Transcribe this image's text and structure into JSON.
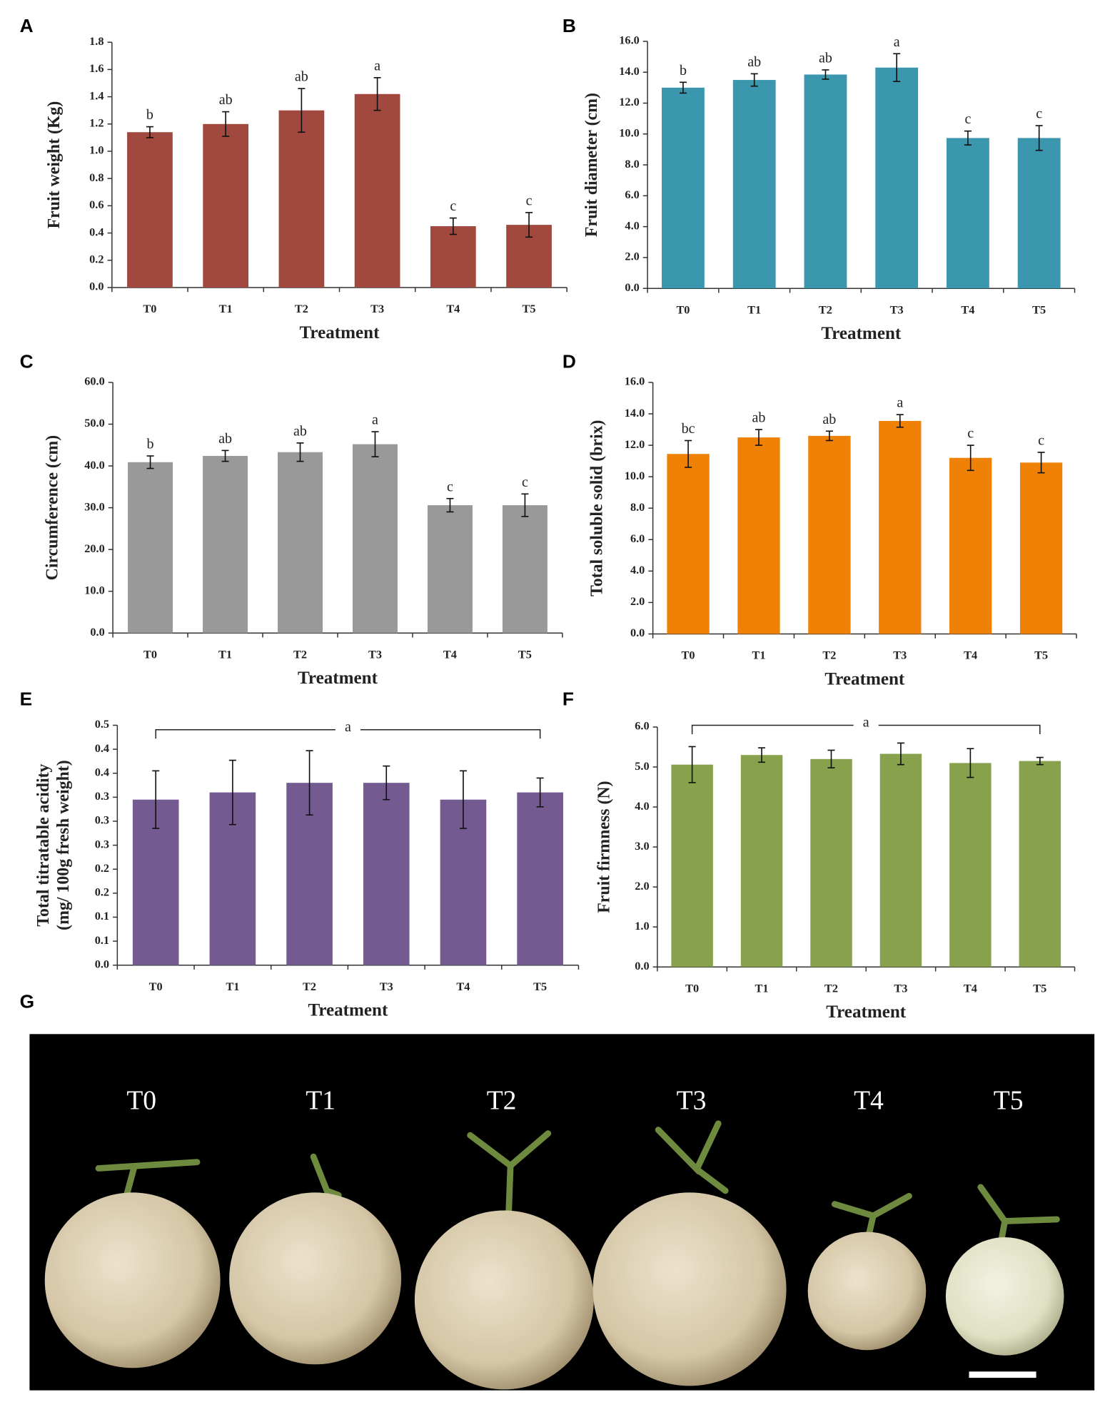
{
  "chart_data": [
    {
      "type": "bar",
      "panel": "A",
      "xlabel": "Treatment",
      "ylabel": "Fruit weight (Kg)",
      "color": "#a2493f",
      "categories": [
        "T0",
        "T1",
        "T2",
        "T3",
        "T4",
        "T5"
      ],
      "values": [
        1.14,
        1.2,
        1.3,
        1.42,
        0.45,
        0.46
      ],
      "errors": [
        0.04,
        0.09,
        0.16,
        0.12,
        0.06,
        0.09
      ],
      "annotations": [
        "b",
        "ab",
        "ab",
        "a",
        "c",
        "c"
      ],
      "ylim": [
        0,
        1.8
      ],
      "yticks": [
        {
          "value": 0,
          "label": "0.0"
        },
        0.2,
        0.4,
        0.6,
        0.8,
        {
          "value": 1,
          "label": "1.0"
        },
        1.2,
        1.4,
        1.6,
        1.8
      ]
    },
    {
      "type": "bar",
      "panel": "B",
      "xlabel": "Treatment",
      "ylabel": "Fruit diameter (cm)",
      "color": "#3b97ae",
      "categories": [
        "T0",
        "T1",
        "T2",
        "T3",
        "T4",
        "T5"
      ],
      "values": [
        13.0,
        13.5,
        13.85,
        14.3,
        9.74,
        9.74
      ],
      "errors": [
        0.35,
        0.4,
        0.3,
        0.9,
        0.45,
        0.8
      ],
      "annotations": [
        "b",
        "ab",
        "ab",
        "a",
        "c",
        "c"
      ],
      "ylim": [
        0,
        16
      ],
      "yticks": [
        {
          "value": 0,
          "label": "0.0"
        },
        {
          "value": 2,
          "label": "2.0"
        },
        {
          "value": 4,
          "label": "4.0"
        },
        {
          "value": 6,
          "label": "6.0"
        },
        {
          "value": 8,
          "label": "8.0"
        },
        {
          "value": 10,
          "label": "10.0"
        },
        {
          "value": 12,
          "label": "12.0"
        },
        {
          "value": 14,
          "label": "14.0"
        },
        {
          "value": 16,
          "label": "16.0"
        }
      ]
    },
    {
      "type": "bar",
      "panel": "C",
      "xlabel": "Treatment",
      "ylabel": "Circumference (cm)",
      "color": "#999999",
      "categories": [
        "T0",
        "T1",
        "T2",
        "T3",
        "T4",
        "T5"
      ],
      "values": [
        40.9,
        42.4,
        43.3,
        45.2,
        30.6,
        30.6
      ],
      "errors": [
        1.5,
        1.3,
        2.2,
        3.0,
        1.6,
        2.7
      ],
      "annotations": [
        "b",
        "ab",
        "ab",
        "a",
        "c",
        "c"
      ],
      "ylim": [
        0,
        60
      ],
      "yticks": [
        {
          "value": 0,
          "label": "0.0"
        },
        {
          "value": 10,
          "label": "10.0"
        },
        {
          "value": 20,
          "label": "20.0"
        },
        {
          "value": 30,
          "label": "30.0"
        },
        {
          "value": 40,
          "label": "40.0"
        },
        {
          "value": 50,
          "label": "50.0"
        },
        {
          "value": 60,
          "label": "60.0"
        }
      ]
    },
    {
      "type": "bar",
      "panel": "D",
      "xlabel": "Treatment",
      "ylabel": "Total soluble solid (brix)",
      "color": "#ef8206",
      "categories": [
        "T0",
        "T1",
        "T2",
        "T3",
        "T4",
        "T5"
      ],
      "values": [
        11.45,
        12.5,
        12.6,
        13.55,
        11.2,
        10.9
      ],
      "errors": [
        0.85,
        0.5,
        0.3,
        0.4,
        0.8,
        0.65
      ],
      "annotations": [
        "bc",
        "ab",
        "ab",
        "a",
        "c",
        "c"
      ],
      "ylim": [
        0,
        16
      ],
      "yticks": [
        {
          "value": 0,
          "label": "0.0"
        },
        {
          "value": 2,
          "label": "2.0"
        },
        {
          "value": 4,
          "label": "4.0"
        },
        {
          "value": 6,
          "label": "6.0"
        },
        {
          "value": 8,
          "label": "8.0"
        },
        {
          "value": 10,
          "label": "10.0"
        },
        {
          "value": 12,
          "label": "12.0"
        },
        {
          "value": 14,
          "label": "14.0"
        },
        {
          "value": 16,
          "label": "16.0"
        }
      ]
    },
    {
      "type": "bar",
      "panel": "E",
      "xlabel": "Treatment",
      "ylabel": [
        "Total titratable acidity",
        "(mg/ 100g fresh weight)"
      ],
      "color": "#735b92",
      "categories": [
        "T0",
        "T1",
        "T2",
        "T3",
        "T4",
        "T5"
      ],
      "values": [
        0.345,
        0.36,
        0.38,
        0.38,
        0.345,
        0.36
      ],
      "errors": [
        0.06,
        0.067,
        0.067,
        0.035,
        0.06,
        0.03
      ],
      "bracket_label": "a",
      "ylim": [
        0,
        0.5
      ],
      "yticks": [
        {
          "value": 0,
          "label": "0.0"
        },
        {
          "value": 0.05,
          "label": "0.1"
        },
        {
          "value": 0.1,
          "label": "0.1"
        },
        {
          "value": 0.15,
          "label": "0.2"
        },
        {
          "value": 0.2,
          "label": "0.2"
        },
        {
          "value": 0.25,
          "label": "0.3"
        },
        {
          "value": 0.3,
          "label": "0.3"
        },
        {
          "value": 0.35,
          "label": "0.3"
        },
        {
          "value": 0.4,
          "label": "0.4"
        },
        {
          "value": 0.45,
          "label": "0.4"
        },
        {
          "value": 0.5,
          "label": "0.5"
        }
      ]
    },
    {
      "type": "bar",
      "panel": "F",
      "xlabel": "Treatment",
      "ylabel": "Fruit firmness (N)",
      "color": "#87a14c",
      "categories": [
        "T0",
        "T1",
        "T2",
        "T3",
        "T4",
        "T5"
      ],
      "values": [
        5.06,
        5.3,
        5.2,
        5.33,
        5.1,
        5.15
      ],
      "errors": [
        0.45,
        0.18,
        0.22,
        0.27,
        0.36,
        0.09
      ],
      "bracket_label": "a",
      "ylim": [
        0,
        6
      ],
      "yticks": [
        {
          "value": 0,
          "label": "0.0"
        },
        {
          "value": 1,
          "label": "1.0"
        },
        {
          "value": 2,
          "label": "2.0"
        },
        {
          "value": 3,
          "label": "3.0"
        },
        {
          "value": 4,
          "label": "4.0"
        },
        {
          "value": 5,
          "label": "5.0"
        },
        {
          "value": 6,
          "label": "6.0"
        }
      ]
    }
  ],
  "photo": {
    "panel": "G",
    "labels": [
      "T0",
      "T1",
      "T2",
      "T3",
      "T4",
      "T5"
    ]
  }
}
